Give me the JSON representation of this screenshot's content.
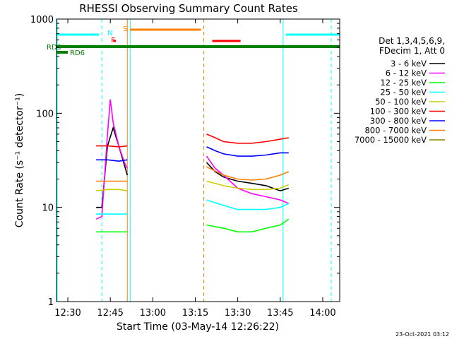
{
  "chart_data": {
    "type": "line",
    "title": "RHESSI Observing Summary Count Rates",
    "xlabel": "Start Time (03-May-14 12:26:22)",
    "ylabel": "Count Rate (s⁻¹ detector⁻¹)",
    "x_range_minutes": [
      "12:26",
      "14:06"
    ],
    "y_scale": "log",
    "ylim": [
      1,
      1000
    ],
    "x_ticks": [
      "12:30",
      "12:45",
      "13:00",
      "13:15",
      "13:30",
      "13:45",
      "14:00"
    ],
    "y_ticks": [
      "1",
      "10",
      "100",
      "1000"
    ],
    "timestamp": "23-Oct-2021 03:12",
    "legend": {
      "title_lines": [
        "Det 1,3,4,5,6,9,",
        "FDecim 1, Att 0"
      ],
      "entries": [
        {
          "label": "3 - 6 keV",
          "color": "#000000"
        },
        {
          "label": "6 - 12 keV",
          "color": "#ff00ff"
        },
        {
          "label": "12 - 25 keV",
          "color": "#00ff00"
        },
        {
          "label": "25 - 50 keV",
          "color": "#00ffff"
        },
        {
          "label": "50 - 100 keV",
          "color": "#cccc00"
        },
        {
          "label": "100 - 300 keV",
          "color": "#ff0000"
        },
        {
          "label": "300 - 800 keV",
          "color": "#0000ff"
        },
        {
          "label": "800 - 7000 keV",
          "color": "#ff8000"
        },
        {
          "label": "7000 - 15000 keV",
          "color": "#808000"
        }
      ]
    },
    "flags": {
      "N_label": "N",
      "F_label": "F",
      "S_label": "S",
      "RD_labels": [
        "RD9",
        "RD6"
      ]
    },
    "series": [
      {
        "name": "3 - 6 keV",
        "segments": [
          {
            "x": [
              "12:40",
              "12:42",
              "12:44",
              "12:46",
              "12:48",
              "12:50",
              "12:51"
            ],
            "y": [
              10,
              10,
              45,
              70,
              45,
              28,
              22
            ]
          },
          {
            "x": [
              "13:19",
              "13:22",
              "13:25",
              "13:30",
              "13:35",
              "13:40",
              "13:45",
              "13:48"
            ],
            "y": [
              30,
              24,
              21,
              19,
              18,
              17,
              15,
              16
            ]
          }
        ]
      },
      {
        "name": "6 - 12 keV",
        "segments": [
          {
            "x": [
              "12:40",
              "12:42",
              "12:44",
              "12:45",
              "12:46",
              "12:48",
              "12:50",
              "12:51"
            ],
            "y": [
              7.5,
              8,
              60,
              140,
              80,
              45,
              30,
              26
            ]
          },
          {
            "x": [
              "13:19",
              "13:22",
              "13:25",
              "13:30",
              "13:35",
              "13:40",
              "13:45",
              "13:48"
            ],
            "y": [
              35,
              26,
              22,
              16,
              14,
              13,
              12,
              11
            ]
          }
        ]
      },
      {
        "name": "12 - 25 keV",
        "segments": [
          {
            "x": [
              "12:40",
              "12:44",
              "12:48",
              "12:51"
            ],
            "y": [
              5.5,
              5.5,
              5.5,
              5.5
            ]
          },
          {
            "x": [
              "13:19",
              "13:25",
              "13:30",
              "13:35",
              "13:40",
              "13:45",
              "13:48"
            ],
            "y": [
              6.5,
              6,
              5.5,
              5.5,
              6,
              6.5,
              7.5
            ]
          }
        ]
      },
      {
        "name": "25 - 50 keV",
        "segments": [
          {
            "x": [
              "12:40",
              "12:44",
              "12:48",
              "12:51"
            ],
            "y": [
              8.5,
              8.5,
              8.5,
              8.5
            ]
          },
          {
            "x": [
              "13:19",
              "13:25",
              "13:30",
              "13:35",
              "13:40",
              "13:45",
              "13:48"
            ],
            "y": [
              12,
              10.5,
              9.5,
              9.5,
              9.5,
              10,
              11
            ]
          }
        ]
      },
      {
        "name": "50 - 100 keV",
        "segments": [
          {
            "x": [
              "12:40",
              "12:44",
              "12:48",
              "12:51"
            ],
            "y": [
              15,
              15.5,
              15.5,
              15
            ]
          },
          {
            "x": [
              "13:19",
              "13:25",
              "13:30",
              "13:35",
              "13:40",
              "13:45",
              "13:48"
            ],
            "y": [
              19,
              17,
              16,
              15.5,
              15.5,
              16,
              17.5
            ]
          }
        ]
      },
      {
        "name": "100 - 300 keV",
        "segments": [
          {
            "x": [
              "12:40",
              "12:44",
              "12:48",
              "12:51"
            ],
            "y": [
              45,
              45,
              44,
              45
            ]
          },
          {
            "x": [
              "13:19",
              "13:22",
              "13:25",
              "13:30",
              "13:35",
              "13:40",
              "13:45",
              "13:48"
            ],
            "y": [
              60,
              55,
              50,
              48,
              48,
              50,
              53,
              55
            ]
          }
        ]
      },
      {
        "name": "300 - 800 keV",
        "segments": [
          {
            "x": [
              "12:40",
              "12:44",
              "12:48",
              "12:51"
            ],
            "y": [
              32,
              32,
              31,
              32
            ]
          },
          {
            "x": [
              "13:19",
              "13:22",
              "13:25",
              "13:30",
              "13:35",
              "13:40",
              "13:45",
              "13:48"
            ],
            "y": [
              44,
              40,
              37,
              35,
              35,
              36,
              38,
              38
            ]
          }
        ]
      },
      {
        "name": "800 - 7000 keV",
        "segments": [
          {
            "x": [
              "12:40",
              "12:44",
              "12:48",
              "12:51"
            ],
            "y": [
              19,
              19,
              19,
              19
            ]
          },
          {
            "x": [
              "13:19",
              "13:25",
              "13:30",
              "13:35",
              "13:40",
              "13:45",
              "13:48"
            ],
            "y": [
              27,
              22,
              20,
              19.5,
              20,
              22,
              24
            ]
          }
        ]
      }
    ]
  }
}
